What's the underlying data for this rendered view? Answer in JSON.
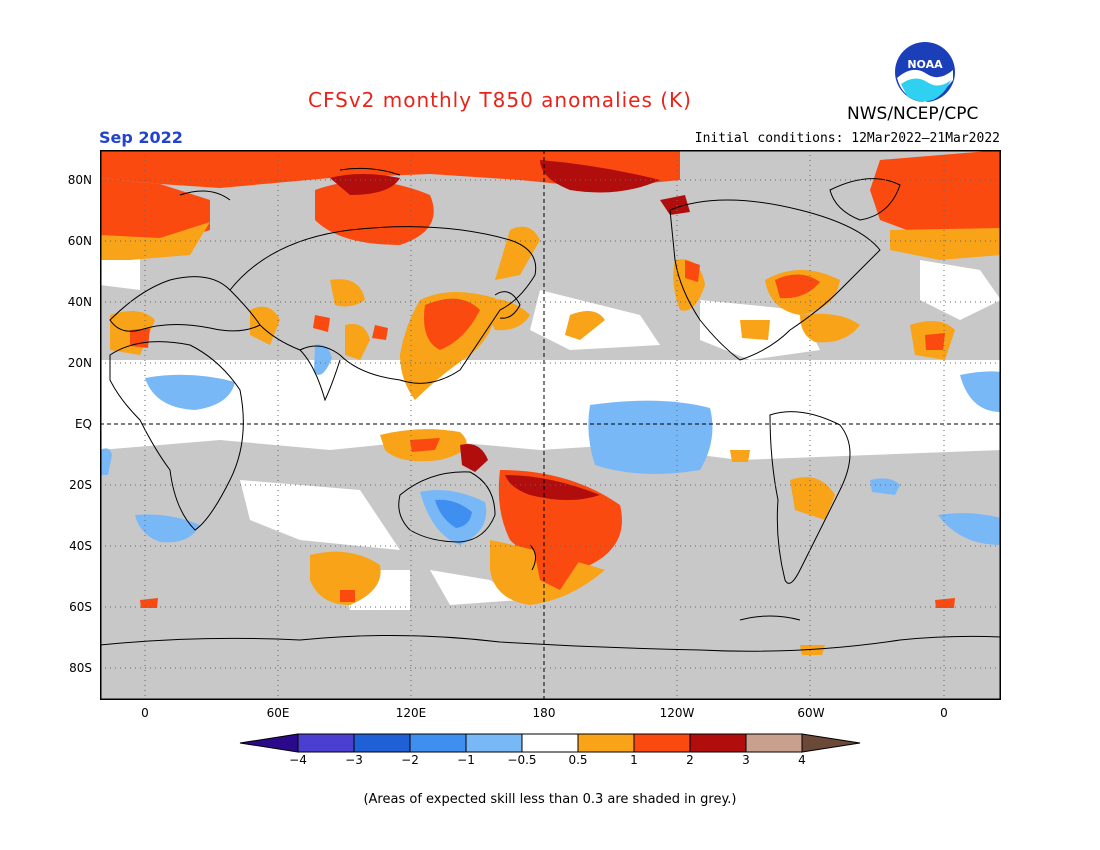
{
  "header": {
    "title": "CFSv2 monthly T850 anomalies (K)",
    "month": "Sep 2022",
    "initial_conditions": "Initial conditions: 12Mar2022–21Mar2022",
    "agency": "NWS/NCEP/CPC",
    "logo_text": "NOAA"
  },
  "axes": {
    "lat_labels": [
      "80N",
      "60N",
      "40N",
      "20N",
      "EQ",
      "20S",
      "40S",
      "60S",
      "80S"
    ],
    "lon_labels": [
      "0",
      "60E",
      "120E",
      "180",
      "120W",
      "60W",
      "0"
    ]
  },
  "colorbar": {
    "labels": [
      "−4",
      "−3",
      "−2",
      "−1",
      "−0.5",
      "0.5",
      "1",
      "2",
      "3",
      "4"
    ],
    "colors": [
      "#2a0a8a",
      "#4b3fd1",
      "#2060d6",
      "#3f8ff0",
      "#79b8f7",
      "#ffffff",
      "#f8a318",
      "#fb4a10",
      "#b10d0d",
      "#c9a08e",
      "#6b4837"
    ]
  },
  "legend_note": "(Areas of expected skill less than 0.3 are shaded in grey.)",
  "colors": {
    "grey_low_skill": "#c8c8c8",
    "title_red": "#e8241a",
    "month_blue": "#2244cc"
  }
}
